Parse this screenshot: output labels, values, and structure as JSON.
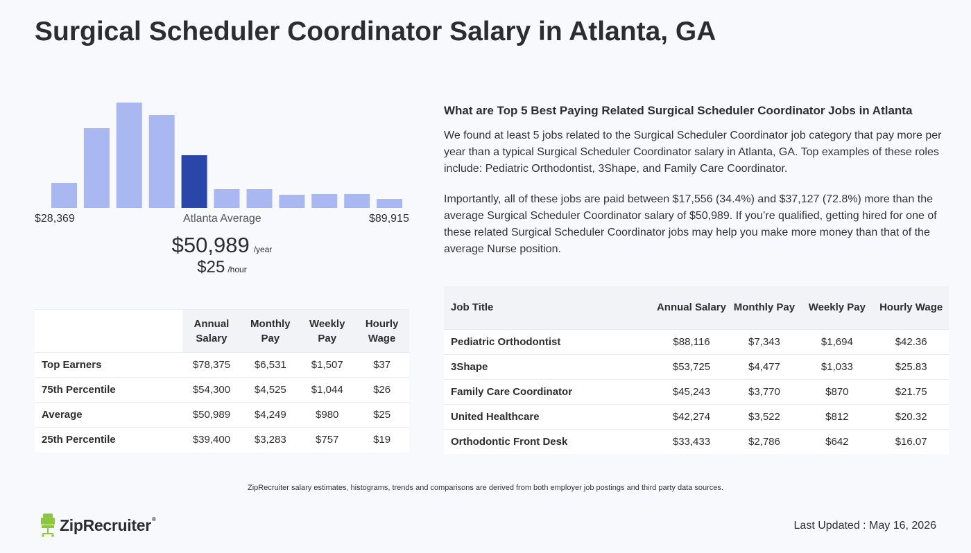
{
  "page": {
    "title": "Surgical Scheduler Coordinator Salary in Atlanta, GA"
  },
  "colors": {
    "bar": "#aab8f2",
    "bar_highlight": "#2946a8",
    "logo_green": "#8dc63f"
  },
  "chart_data": {
    "type": "bar",
    "values": [
      36,
      115,
      152,
      134,
      76,
      27,
      27,
      19,
      20,
      20,
      13
    ],
    "highlight_index": 4,
    "ylim": [
      0,
      152
    ],
    "range_min": "$28,369",
    "range_max": "$89,915",
    "average_label": "Atlanta Average"
  },
  "summary": {
    "annual": "$50,989",
    "annual_unit": "/year",
    "hourly": "$25",
    "hourly_unit": "/hour"
  },
  "pct_table": {
    "headers": [
      "Annual Salary",
      "Monthly Pay",
      "Weekly Pay",
      "Hourly Wage"
    ],
    "rows": [
      {
        "label": "Top Earners",
        "annual": "$78,375",
        "monthly": "$6,531",
        "weekly": "$1,507",
        "hourly": "$37"
      },
      {
        "label": "75th Percentile",
        "annual": "$54,300",
        "monthly": "$4,525",
        "weekly": "$1,044",
        "hourly": "$26"
      },
      {
        "label": "Average",
        "annual": "$50,989",
        "monthly": "$4,249",
        "weekly": "$980",
        "hourly": "$25"
      },
      {
        "label": "25th Percentile",
        "annual": "$39,400",
        "monthly": "$3,283",
        "weekly": "$757",
        "hourly": "$19"
      }
    ]
  },
  "related": {
    "heading": "What are Top 5 Best Paying Related Surgical Scheduler Coordinator Jobs in Atlanta",
    "para1": "We found at least 5 jobs related to the Surgical Scheduler Coordinator job category that pay more per year than a typical Surgical Scheduler Coordinator salary in Atlanta, GA. Top examples of these roles include: Pediatric Orthodontist, 3Shape, and Family Care Coordinator.",
    "para2": "Importantly, all of these jobs are paid between $17,556 (34.4%) and $37,127 (72.8%) more than the average Surgical Scheduler Coordinator salary of $50,989. If you’re qualified, getting hired for one of these related Surgical Scheduler Coordinator jobs may help you make more money than that of the average Nurse position."
  },
  "jobs_table": {
    "headers": [
      "Job Title",
      "Annual Salary",
      "Monthly Pay",
      "Weekly Pay",
      "Hourly Wage"
    ],
    "rows": [
      {
        "title": "Pediatric Orthodontist",
        "annual": "$88,116",
        "monthly": "$7,343",
        "weekly": "$1,694",
        "hourly": "$42.36"
      },
      {
        "title": "3Shape",
        "annual": "$53,725",
        "monthly": "$4,477",
        "weekly": "$1,033",
        "hourly": "$25.83"
      },
      {
        "title": "Family Care Coordinator",
        "annual": "$45,243",
        "monthly": "$3,770",
        "weekly": "$870",
        "hourly": "$21.75"
      },
      {
        "title": "United Healthcare",
        "annual": "$42,274",
        "monthly": "$3,522",
        "weekly": "$812",
        "hourly": "$20.32"
      },
      {
        "title": "Orthodontic Front Desk",
        "annual": "$33,433",
        "monthly": "$2,786",
        "weekly": "$642",
        "hourly": "$16.07"
      }
    ]
  },
  "footer": {
    "disclaimer": "ZipRecruiter salary estimates, histograms, trends and comparisons are derived from both employer job postings and third party data sources.",
    "logo_text": "ZipRecruiter",
    "logo_icon": "chair-icon",
    "last_updated": "Last Updated : May 16, 2026"
  }
}
